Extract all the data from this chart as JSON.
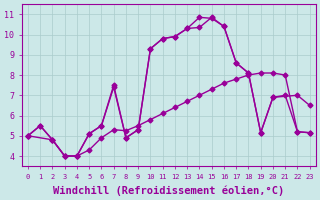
{
  "bg_color": "#cce8e8",
  "line_color": "#990099",
  "grid_color": "#aacccc",
  "xlabel": "Windchill (Refroidissement éolien,°C)",
  "xlabel_fontsize": 7.5,
  "xtick_labels": [
    "0",
    "1",
    "2",
    "3",
    "4",
    "5",
    "6",
    "7",
    "8",
    "9",
    "10",
    "11",
    "12",
    "13",
    "14",
    "15",
    "16",
    "17",
    "18",
    "19",
    "20",
    "21",
    "22",
    "23"
  ],
  "ytick_values": [
    4,
    5,
    6,
    7,
    8,
    9,
    10,
    11
  ],
  "ytick_labels": [
    "4",
    "5",
    "6",
    "7",
    "8",
    "9",
    "10",
    "11"
  ],
  "ylim": [
    3.5,
    11.5
  ],
  "xlim": [
    -0.5,
    23.5
  ],
  "line1_x": [
    0,
    1,
    2,
    3,
    4,
    5,
    6,
    7,
    8,
    9,
    10,
    11,
    12,
    13,
    14,
    15,
    16,
    17,
    18,
    19,
    20,
    21,
    22,
    23
  ],
  "line1_y": [
    5.0,
    5.5,
    4.8,
    4.0,
    4.0,
    4.3,
    4.9,
    5.3,
    5.25,
    5.5,
    5.8,
    6.1,
    6.4,
    6.7,
    7.0,
    7.3,
    7.6,
    7.8,
    8.0,
    8.1,
    8.1,
    8.0,
    5.2,
    5.15
  ],
  "line2_x": [
    0,
    2,
    3,
    4,
    5,
    6,
    7,
    8,
    9,
    10,
    11,
    12,
    13,
    14,
    15,
    16,
    17,
    18,
    19,
    20,
    22,
    23
  ],
  "line2_y": [
    5.0,
    4.8,
    4.0,
    4.0,
    5.1,
    5.5,
    7.4,
    4.9,
    5.3,
    9.3,
    9.8,
    9.9,
    10.3,
    10.35,
    10.85,
    10.4,
    8.6,
    8.1,
    5.15,
    6.9,
    7.0,
    6.5
  ],
  "line3_x": [
    0,
    1,
    2,
    3,
    4,
    5,
    6,
    7,
    8,
    9,
    10,
    11,
    12,
    13,
    14,
    15,
    16,
    17,
    18,
    19,
    20,
    21,
    22,
    23
  ],
  "line3_y": [
    5.0,
    5.5,
    4.8,
    4.0,
    4.0,
    5.1,
    5.5,
    7.5,
    4.9,
    5.3,
    9.3,
    9.8,
    9.9,
    10.3,
    10.85,
    10.8,
    10.4,
    8.6,
    8.1,
    5.15,
    6.9,
    7.0,
    5.2,
    5.15
  ],
  "marker": "D",
  "markersize": 2.5,
  "linewidth": 1.0
}
